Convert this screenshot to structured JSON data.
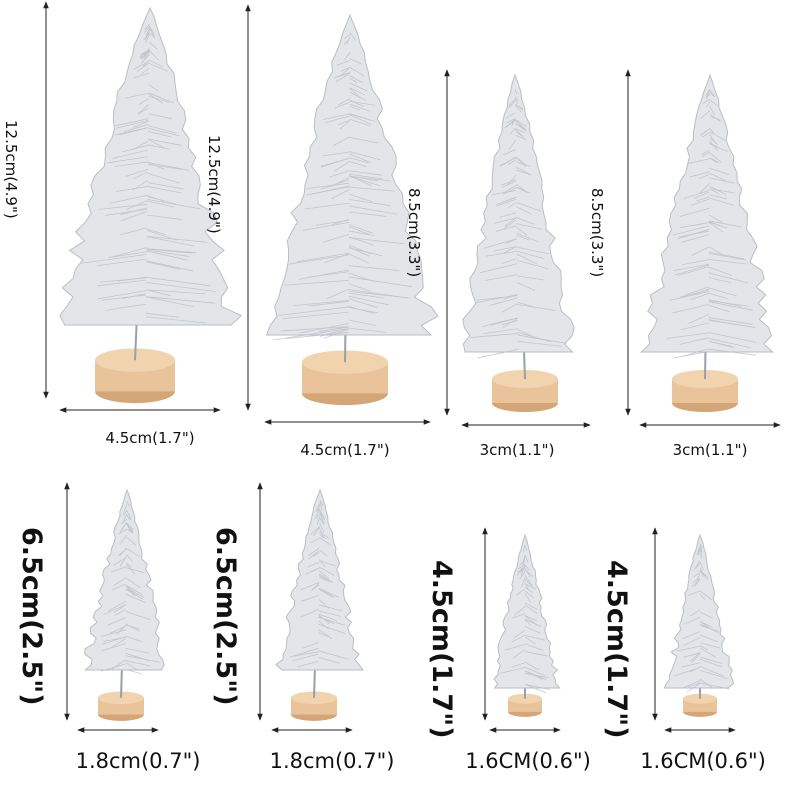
{
  "trees": [
    {
      "height_label": "12.5cm(4.9\")",
      "width_label": "4.5cm(1.7\")"
    },
    {
      "height_label": "12.5cm(4.9\")",
      "width_label": "4.5cm(1.7\")"
    },
    {
      "height_label": "8.5cm(3.3\")",
      "width_label": "3cm(1.1\")"
    },
    {
      "height_label": "8.5cm(3.3\")",
      "width_label": "3cm(1.1\")"
    },
    {
      "height_label": "6.5cm(2.5\")",
      "width_label": "1.8cm(0.7\")"
    },
    {
      "height_label": "6.5cm(2.5\")",
      "width_label": "1.8cm(0.7\")"
    },
    {
      "height_label": "4.5cm(1.7\")",
      "width_label": "1.6CM(0.6\")"
    },
    {
      "height_label": "4.5cm(1.7\")",
      "width_label": "1.6CM(0.6\")"
    }
  ],
  "colors": {
    "tree": "#e3e5e9",
    "tree_shade": "#b9bec6",
    "base": "#e9c39a",
    "base_edge": "#d4a677",
    "arrow": "#222222"
  }
}
